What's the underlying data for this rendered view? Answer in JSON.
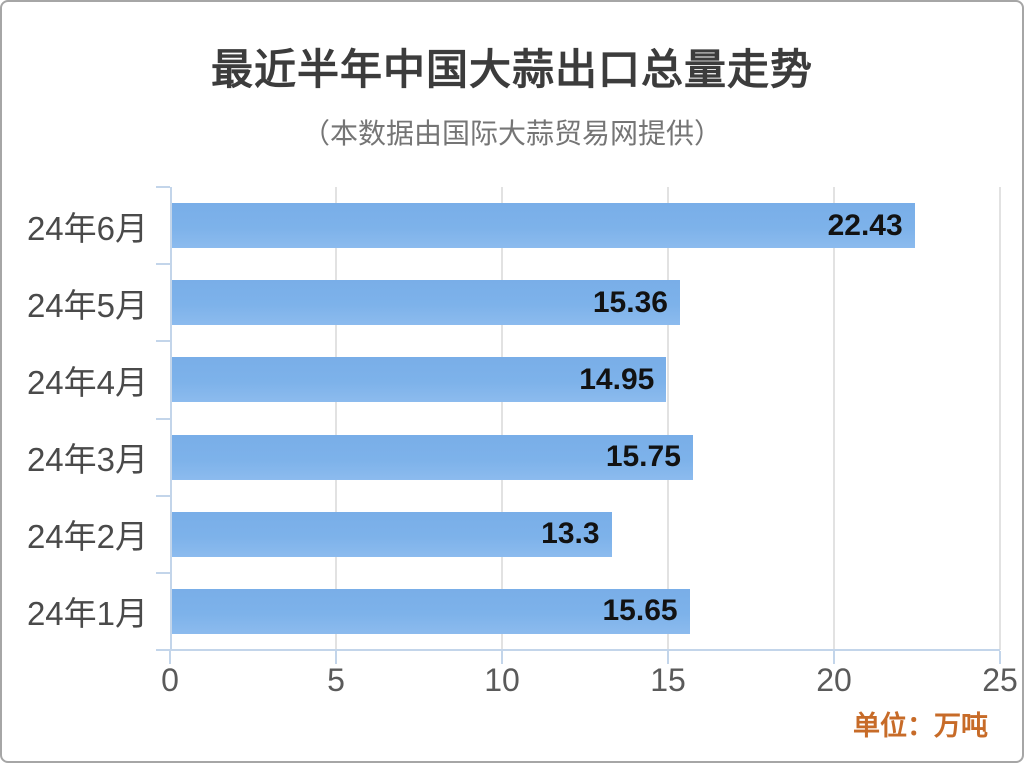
{
  "page": {
    "title": "最近半年中国大蒜出口总量走势",
    "subtitle": "（本数据由国际大蒜贸易网提供）",
    "unit_label": "单位：万吨"
  },
  "chart_data": {
    "type": "bar",
    "orientation": "horizontal",
    "title": "最近半年中国大蒜出口总量走势",
    "subtitle": "（本数据由国际大蒜贸易网提供）",
    "categories": [
      "24年6月",
      "24年5月",
      "24年4月",
      "24年3月",
      "24年2月",
      "24年1月"
    ],
    "values": [
      22.43,
      15.36,
      14.95,
      15.75,
      13.3,
      15.65
    ],
    "value_labels": [
      "22.43",
      "15.36",
      "14.95",
      "15.75",
      "13.3",
      "15.65"
    ],
    "unit": "万吨",
    "xlabel": "",
    "ylabel": "",
    "x_ticks": [
      0,
      5,
      10,
      15,
      20,
      25
    ],
    "xlim": [
      0,
      25
    ],
    "grid": true,
    "legend": "none",
    "colors": {
      "bar_top": "#79aee8",
      "bar_mid": "#7db2ea",
      "bar_bottom": "#8cbbee",
      "axis": "#c3d5ea",
      "gridline": "#e2e2e2",
      "title_text": "#3c3c3c",
      "subtitle_text": "#757575",
      "category_text": "#4a4a4a",
      "value_text": "#121212",
      "tick_text": "#5a5a5a",
      "unit_text": "#c76b28"
    }
  }
}
